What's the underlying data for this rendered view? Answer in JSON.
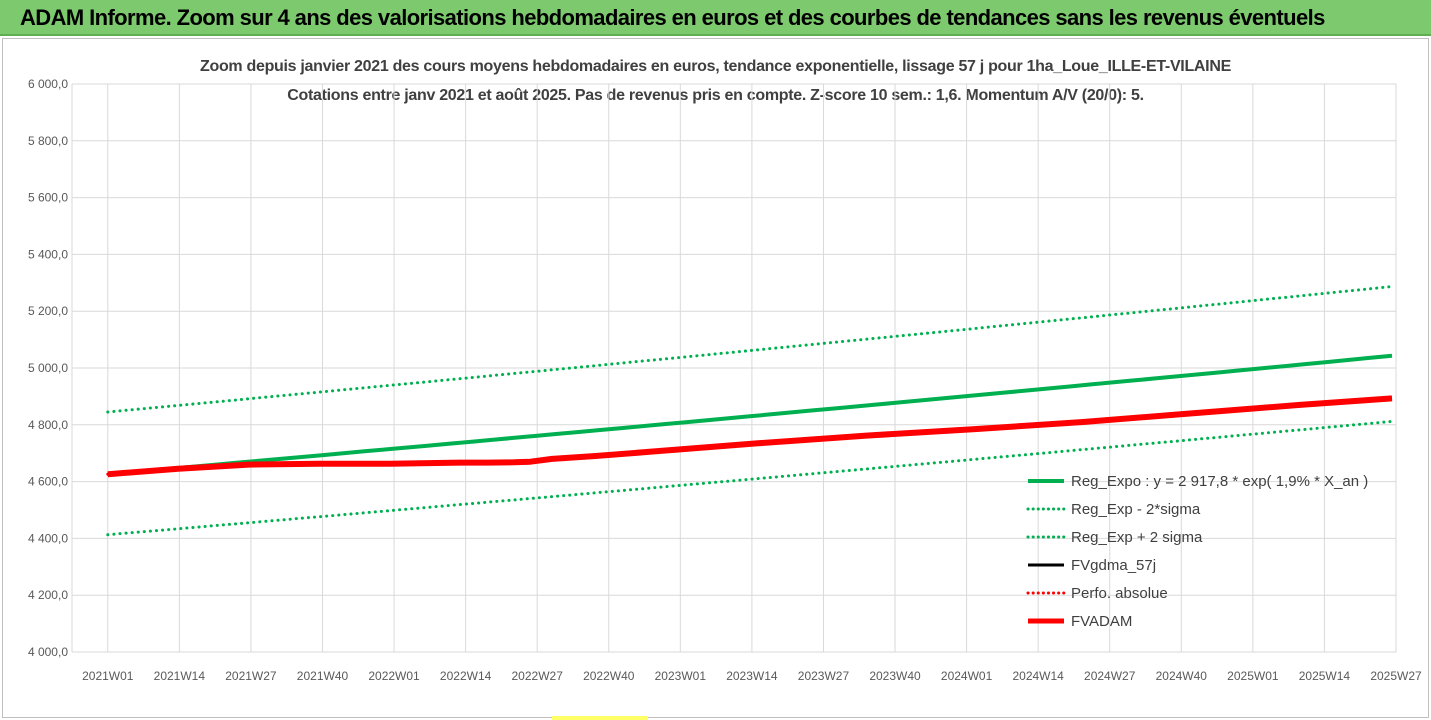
{
  "banner": {
    "text": "ADAM Informe. Zoom sur 4 ans des valorisations hebdomadaires en euros et des courbes de tendances sans les revenus éventuels",
    "color": "#7dca6e"
  },
  "chart_data": {
    "type": "line",
    "title": "Zoom depuis janvier 2021 des cours moyens hebdomadaires en euros, tendance exponentielle, lissage 57 j pour 1ha_Loue_ILLE-ET-VILAINE",
    "subtitle": "Cotations entre janv 2021 et août 2025.  Pas de revenus pris en compte. Z-score 10 sem.: 1,6. Momentum A/V (20/0): 5.",
    "xlabel": "",
    "ylabel": "",
    "ylim": [
      4000,
      6000
    ],
    "grid": true,
    "legend_position": "bottom-right",
    "x_ticks": [
      "2021W01",
      "2021W14",
      "2021W27",
      "2021W40",
      "2022W01",
      "2022W14",
      "2022W27",
      "2022W40",
      "2023W01",
      "2023W14",
      "2023W27",
      "2023W40",
      "2024W01",
      "2024W14",
      "2024W27",
      "2024W40",
      "2025W01",
      "2025W14",
      "2025W27"
    ],
    "y_ticks": [
      "4 000,0",
      "4 200,0",
      "4 400,0",
      "4 600,0",
      "4 800,0",
      "5 000,0",
      "5 200,0",
      "5 400,0",
      "5 600,0",
      "5 800,0",
      "6 000,0"
    ],
    "x_range_index": [
      0,
      237
    ],
    "series": [
      {
        "name": "Reg_Expo : y = 2 917,8 * exp( 1,9% *  X_an )",
        "color": "#00b050",
        "style": "solid",
        "width": 4,
        "x": [
          0,
          237
        ],
        "y": [
          4626,
          5043
        ],
        "curve": "exp"
      },
      {
        "name": "Reg_Exp - 2*sigma",
        "color": "#00b050",
        "style": "dotted",
        "width": 3,
        "x": [
          0,
          237
        ],
        "y": [
          4413,
          4812
        ],
        "curve": "exp"
      },
      {
        "name": "Reg_Exp + 2 sigma",
        "color": "#00b050",
        "style": "dotted",
        "width": 3,
        "x": [
          0,
          237
        ],
        "y": [
          4845,
          5287
        ],
        "curve": "exp"
      },
      {
        "name": "FVgdma_57j",
        "color": "#000000",
        "style": "solid",
        "width": 3,
        "x": [
          0,
          13,
          26,
          39,
          52,
          65,
          70,
          75,
          78,
          82,
          90,
          100,
          120,
          140,
          160,
          180,
          200,
          220,
          237
        ],
        "y": [
          4626,
          4645,
          4660,
          4663,
          4663,
          4667,
          4667,
          4670,
          4672,
          4680,
          4690,
          4705,
          4735,
          4762,
          4785,
          4810,
          4840,
          4870,
          4893
        ]
      },
      {
        "name": "Perfo. absolue",
        "color": "#ff0000",
        "style": "dotted",
        "width": 3,
        "x": [
          0,
          13,
          26,
          39,
          52,
          65,
          70,
          75,
          78,
          82,
          90,
          100,
          120,
          140,
          160,
          180,
          200,
          220,
          237
        ],
        "y": [
          4626,
          4645,
          4660,
          4663,
          4663,
          4667,
          4667,
          4670,
          4672,
          4680,
          4690,
          4705,
          4735,
          4762,
          4785,
          4810,
          4840,
          4870,
          4893
        ]
      },
      {
        "name": "FVADAM",
        "color": "#ff0000",
        "style": "solid",
        "width": 6,
        "x": [
          0,
          13,
          26,
          39,
          52,
          65,
          70,
          75,
          78,
          82,
          90,
          100,
          120,
          140,
          160,
          180,
          200,
          220,
          237
        ],
        "y": [
          4626,
          4645,
          4660,
          4663,
          4663,
          4667,
          4667,
          4668,
          4670,
          4680,
          4690,
          4705,
          4735,
          4762,
          4785,
          4810,
          4840,
          4870,
          4893
        ]
      }
    ]
  }
}
